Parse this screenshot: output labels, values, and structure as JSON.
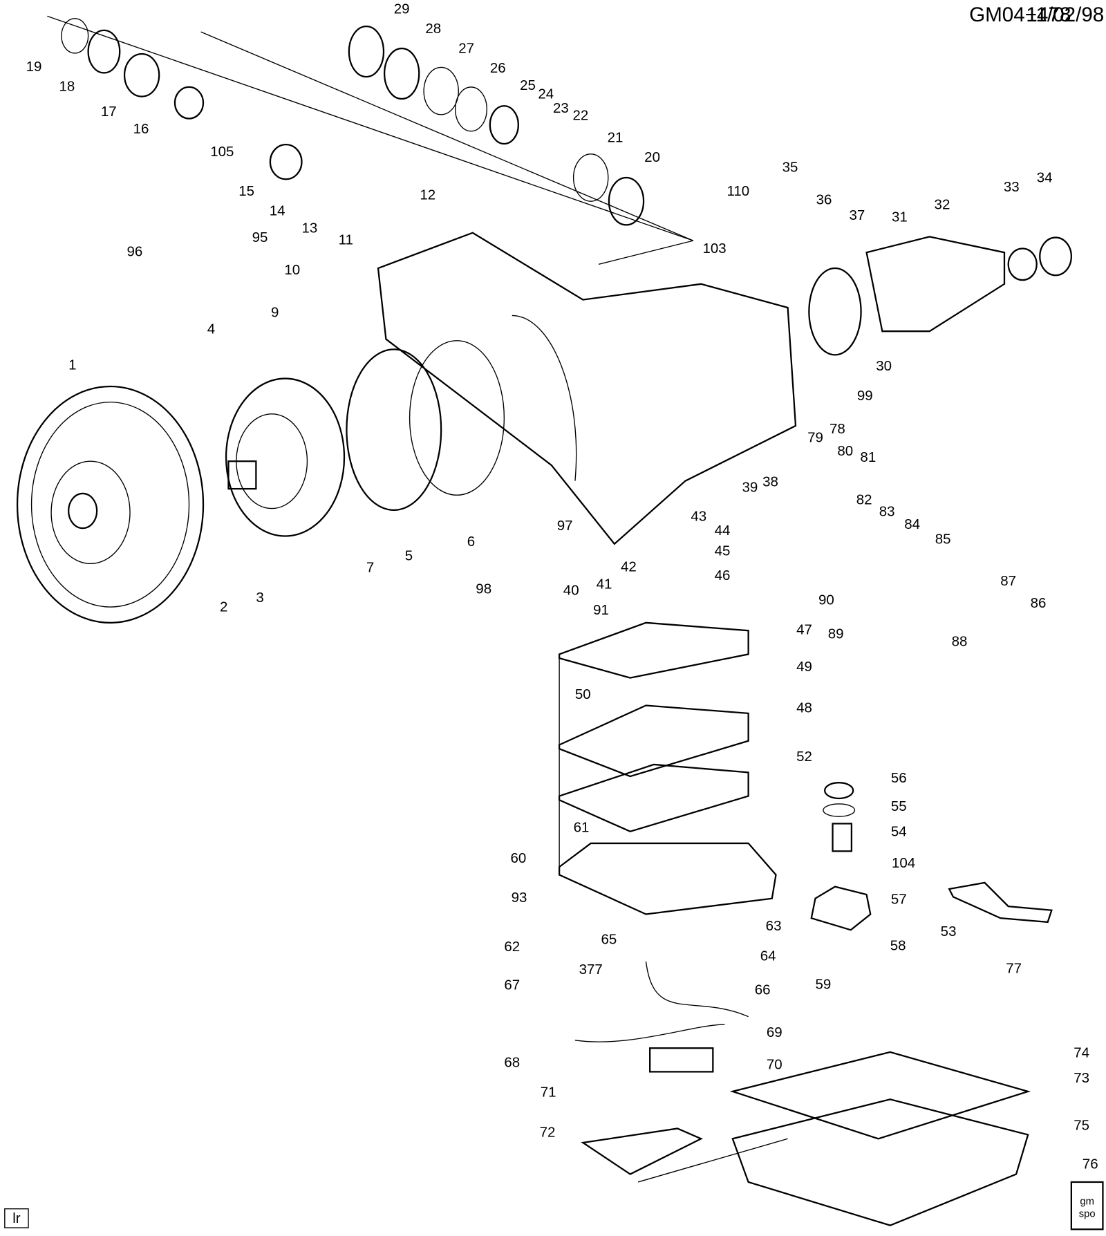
{
  "header": {
    "code": "GM04−478",
    "date": "11/02/98"
  },
  "callouts": [
    "29",
    "28",
    "27",
    "26",
    "25",
    "24",
    "23",
    "22",
    "21",
    "20",
    "19",
    "18",
    "17",
    "16",
    "105",
    "15",
    "14",
    "13",
    "12",
    "11",
    "96",
    "95",
    "10",
    "9",
    "35",
    "110",
    "36",
    "37",
    "31",
    "32",
    "33",
    "34",
    "103",
    "30",
    "99",
    "79",
    "78",
    "80",
    "81",
    "39",
    "38",
    "1",
    "4",
    "2",
    "3",
    "7",
    "5",
    "6",
    "97",
    "98",
    "40",
    "41",
    "42",
    "43",
    "44",
    "45",
    "46",
    "82",
    "83",
    "84",
    "85",
    "87",
    "86",
    "90",
    "91",
    "89",
    "88",
    "47",
    "49",
    "50",
    "48",
    "52",
    "56",
    "55",
    "54",
    "61",
    "60",
    "104",
    "57",
    "93",
    "63",
    "53",
    "65",
    "62",
    "64",
    "58",
    "59",
    "77",
    "377",
    "66",
    "67",
    "69",
    "74",
    "68",
    "70",
    "73",
    "71",
    "72",
    "75",
    "76"
  ],
  "footer": {
    "code": "lr",
    "logo_top": "gm",
    "logo_bottom": "spo"
  }
}
